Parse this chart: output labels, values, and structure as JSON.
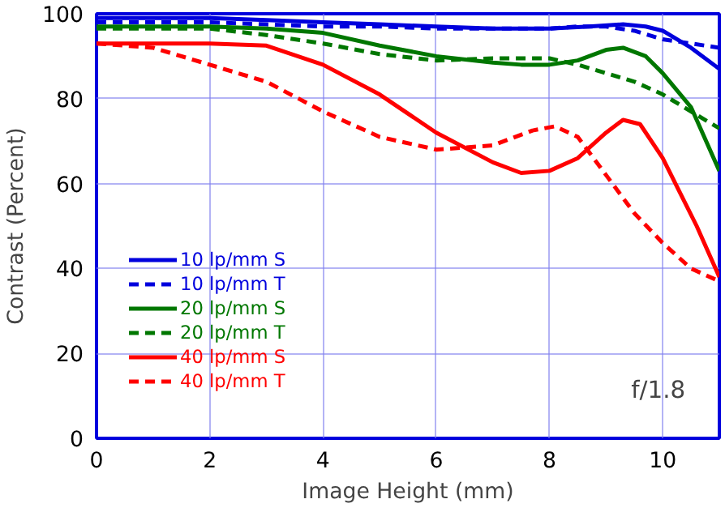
{
  "chart_data": {
    "type": "line",
    "xlabel": "Image Height (mm)",
    "ylabel": "Contrast (Percent)",
    "xlim": [
      0,
      11
    ],
    "ylim": [
      0,
      100
    ],
    "xticks": [
      0,
      2,
      4,
      6,
      8,
      10
    ],
    "yticks": [
      0,
      20,
      40,
      60,
      80,
      100
    ],
    "grid": true,
    "legend": "bottom left",
    "marker": "none",
    "annotations": [
      {
        "text": "f/1.8"
      }
    ],
    "series": [
      {
        "name": "10 lp/mm S",
        "color": "#0000dd",
        "line_style": "solid",
        "x": [
          0,
          1,
          2,
          3,
          4,
          5,
          6,
          7,
          8,
          8.7,
          9.3,
          9.7,
          10,
          10.5,
          11
        ],
        "values": [
          99,
          99,
          99,
          98.5,
          98,
          97.5,
          97,
          96.5,
          96.5,
          97,
          97.5,
          97,
          96,
          92,
          87
        ]
      },
      {
        "name": "10 lp/mm T",
        "color": "#0000dd",
        "line_style": "dashed",
        "x": [
          0,
          1,
          2,
          3,
          4,
          5,
          6,
          7,
          8,
          8.5,
          9,
          9.5,
          10,
          10.5,
          11
        ],
        "values": [
          98,
          98,
          98,
          97.5,
          97,
          97,
          96.5,
          96.5,
          96.5,
          97,
          97,
          96,
          94,
          93,
          92
        ]
      },
      {
        "name": "20 lp/mm S",
        "color": "#007700",
        "line_style": "solid",
        "x": [
          0,
          1,
          2,
          3,
          4,
          5,
          6,
          7,
          7.5,
          8,
          8.5,
          9,
          9.3,
          9.7,
          10,
          10.5,
          11
        ],
        "values": [
          97,
          97,
          97,
          96.5,
          95.5,
          92.5,
          90,
          88.5,
          88,
          88,
          89,
          91.5,
          92,
          90,
          86,
          78,
          63
        ]
      },
      {
        "name": "20 lp/mm T",
        "color": "#007700",
        "line_style": "dashed",
        "x": [
          0,
          1,
          2,
          3,
          4,
          5,
          6,
          7,
          8,
          8.5,
          9,
          9.5,
          10,
          10.5,
          11
        ],
        "values": [
          96.5,
          96.5,
          96.5,
          95,
          93,
          90.5,
          89,
          89.5,
          89.5,
          88,
          86,
          84,
          81,
          77,
          73
        ]
      },
      {
        "name": "40 lp/mm S",
        "color": "#ff0000",
        "line_style": "solid",
        "x": [
          0,
          1,
          2,
          3,
          4,
          5,
          6,
          7,
          7.5,
          8,
          8.5,
          9,
          9.3,
          9.6,
          10,
          10.3,
          10.6,
          11
        ],
        "values": [
          93,
          93,
          93,
          92.5,
          88,
          81,
          72,
          65,
          62.5,
          63,
          66,
          72,
          75,
          74,
          66,
          58,
          50,
          38
        ]
      },
      {
        "name": "40 lp/mm T",
        "color": "#ff0000",
        "line_style": "dashed",
        "x": [
          0,
          1,
          2,
          3,
          4,
          5,
          6,
          7,
          7.7,
          8.1,
          8.5,
          9,
          9.5,
          10,
          10.5,
          11
        ],
        "values": [
          93,
          92,
          88,
          84,
          77,
          71,
          68,
          69,
          72.5,
          73.5,
          71,
          62,
          53,
          46,
          40,
          37
        ]
      }
    ]
  }
}
